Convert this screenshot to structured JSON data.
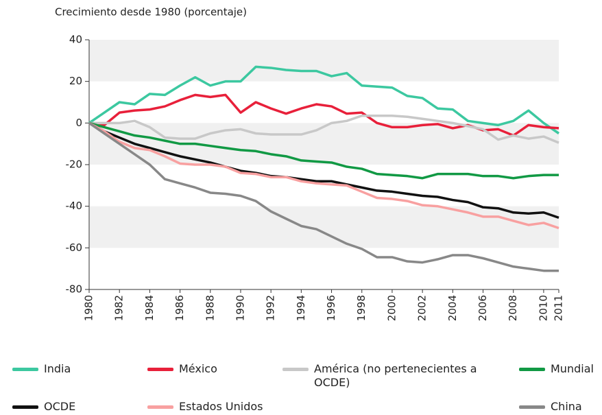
{
  "chart_data": {
    "type": "line",
    "title": "Crecimiento desde 1980 (porcentaje)",
    "x": [
      1980,
      1981,
      1982,
      1983,
      1984,
      1985,
      1986,
      1987,
      1988,
      1989,
      1990,
      1991,
      1992,
      1993,
      1994,
      1995,
      1996,
      1997,
      1998,
      1999,
      2000,
      2001,
      2002,
      2003,
      2004,
      2005,
      2006,
      2007,
      2008,
      2009,
      2010,
      2011
    ],
    "xlim": [
      1980,
      2011
    ],
    "xticks": [
      1980,
      1982,
      1984,
      1986,
      1988,
      1990,
      1992,
      1994,
      1996,
      1998,
      2000,
      2002,
      2004,
      2006,
      2008,
      2010,
      2011
    ],
    "ylim": [
      -80,
      40
    ],
    "yticks": [
      40,
      20,
      0,
      -20,
      -40,
      -60,
      -80
    ],
    "grid": true,
    "series": [
      {
        "name": "India",
        "color": "#3cc8a0",
        "values": [
          0,
          5,
          10,
          9,
          14,
          13.5,
          18,
          22,
          18,
          20,
          20,
          27,
          26.5,
          25.5,
          25,
          25,
          22.5,
          24,
          18,
          17.5,
          17,
          13,
          12,
          7,
          6.5,
          1,
          0,
          -1,
          1,
          6,
          0,
          -5
        ]
      },
      {
        "name": "México",
        "color": "#e8203a",
        "values": [
          0,
          -1,
          5,
          6,
          6.5,
          8,
          11,
          13.5,
          12.5,
          13.5,
          5,
          10,
          7,
          4.5,
          7,
          9,
          8,
          4.5,
          5,
          0,
          -2,
          -2,
          -1,
          -0.5,
          -2.5,
          -1,
          -3.5,
          -3,
          -6,
          -1,
          -2,
          -2.5
        ]
      },
      {
        "name": "América (no pertenecientes a OCDE)",
        "color": "#c8c8c8",
        "values": [
          0,
          0,
          0,
          1,
          -2,
          -7,
          -7.5,
          -7.5,
          -5,
          -3.5,
          -3,
          -5,
          -5.5,
          -5.5,
          -5.5,
          -3.5,
          0,
          1,
          3.5,
          3.5,
          3.5,
          3,
          2,
          1,
          0,
          -1.5,
          -3,
          -8,
          -6,
          -7.5,
          -6.5,
          -9.5
        ]
      },
      {
        "name": "Mundial",
        "color": "#119944",
        "values": [
          0,
          -2,
          -4,
          -6,
          -7,
          -8.5,
          -10,
          -10,
          -11,
          -12,
          -13,
          -13.5,
          -15,
          -16,
          -18,
          -18.5,
          -19,
          -21,
          -22,
          -24.5,
          -25,
          -25.5,
          -26.5,
          -24.5,
          -24.5,
          -24.5,
          -25.5,
          -25.5,
          -26.5,
          -25.5,
          -25,
          -25
        ]
      },
      {
        "name": "OCDE",
        "color": "#111111",
        "values": [
          0,
          -4,
          -7,
          -10,
          -12,
          -14,
          -16,
          -17.5,
          -19,
          -21,
          -23,
          -24,
          -25.5,
          -26,
          -27,
          -28,
          -28,
          -29.5,
          -31,
          -32.5,
          -33,
          -34,
          -35,
          -35.5,
          -37,
          -38,
          -40.5,
          -41,
          -43,
          -43.5,
          -43,
          -45.5
        ]
      },
      {
        "name": "Estados Unidos",
        "color": "#f8a0a0",
        "values": [
          0,
          -4,
          -9,
          -12,
          -13,
          -16,
          -19.5,
          -20,
          -20,
          -21,
          -24,
          -24.5,
          -26,
          -26,
          -28,
          -29,
          -29.5,
          -30,
          -33,
          -36,
          -36.5,
          -37.5,
          -39.5,
          -40,
          -41.5,
          -43,
          -45,
          -45,
          -47,
          -49,
          -48,
          -50.5
        ]
      },
      {
        "name": "China",
        "color": "#888888",
        "values": [
          0,
          -5,
          -10,
          -15,
          -20,
          -27,
          -29,
          -31,
          -33.5,
          -34,
          -35,
          -37.5,
          -42.5,
          -46,
          -49.5,
          -51,
          -54.5,
          -58,
          -60.5,
          -64.5,
          -64.5,
          -66.5,
          -67,
          -65.5,
          -63.5,
          -63.5,
          -65,
          -67,
          -69,
          -70,
          -71,
          -71
        ]
      }
    ]
  }
}
